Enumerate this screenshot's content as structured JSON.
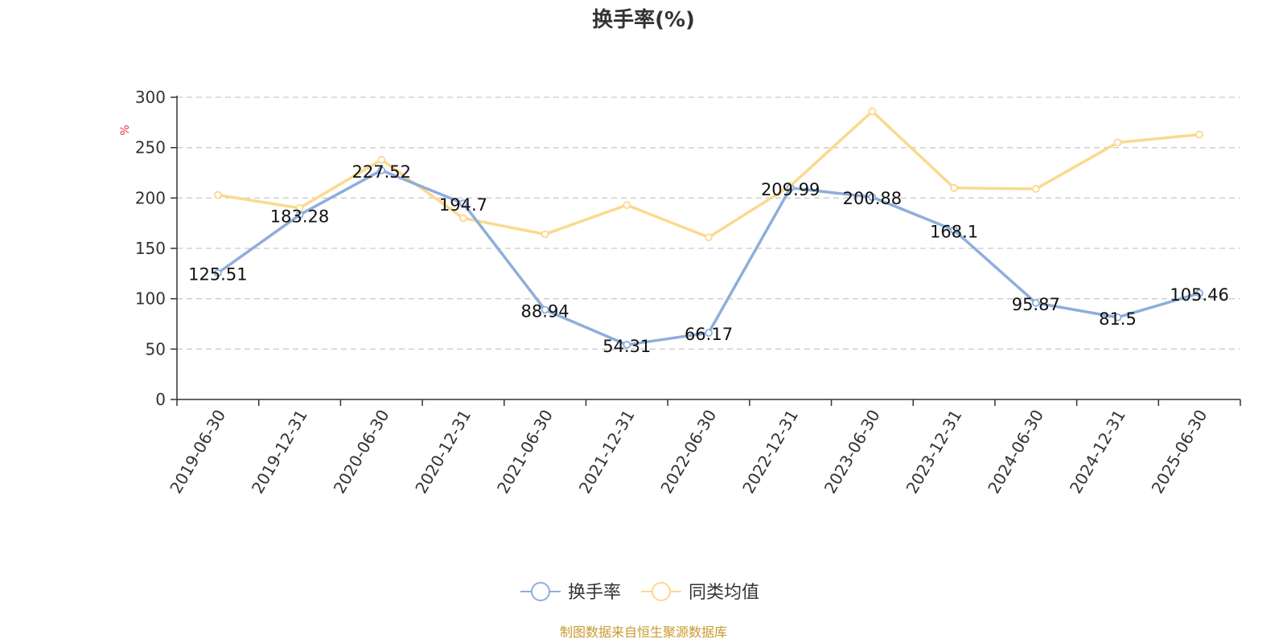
{
  "chart_data": {
    "type": "line",
    "title": "换手率(%)",
    "ylabel": "%",
    "xlabel": "",
    "ylim": [
      0,
      300
    ],
    "yticks": [
      0,
      50,
      100,
      150,
      200,
      250,
      300
    ],
    "grid": true,
    "legend_position": "bottom-center",
    "categories": [
      "2019-06-30",
      "2019-12-31",
      "2020-06-30",
      "2020-12-31",
      "2021-06-30",
      "2021-12-31",
      "2022-06-30",
      "2022-12-31",
      "2023-06-30",
      "2023-12-31",
      "2024-06-30",
      "2024-12-31",
      "2025-06-30"
    ],
    "series": [
      {
        "name": "换手率",
        "color": "#8eaedb",
        "values": [
          125.51,
          183.28,
          227.52,
          194.7,
          88.94,
          54.31,
          66.17,
          209.99,
          200.88,
          168.1,
          95.87,
          81.5,
          105.46
        ],
        "data_labels": [
          "125.51",
          "183.28",
          "227.52",
          "194.7",
          "88.94",
          "54.31",
          "66.17",
          "209.99",
          "200.88",
          "168.1",
          "95.87",
          "81.5",
          "105.46"
        ]
      },
      {
        "name": "同类均值",
        "color": "#fbd98e",
        "values": [
          203,
          190,
          238,
          180,
          164,
          193,
          161,
          212,
          286,
          210,
          209,
          255,
          263
        ]
      }
    ]
  },
  "colors": {
    "axis": "#333333",
    "grid": "#cccccc",
    "unit": "#e8352c",
    "source": "#c99a2e"
  },
  "source_text": "制图数据来自恒生聚源数据库"
}
